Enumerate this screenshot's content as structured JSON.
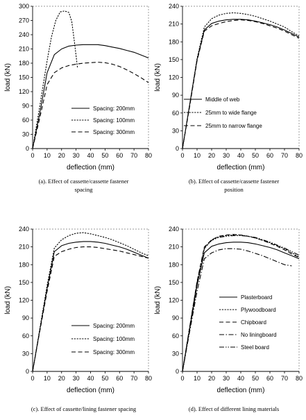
{
  "chart_data": [
    {
      "type": "line",
      "xlabel": "deflection (mm)",
      "ylabel": "load (kN)",
      "xlim": [
        0,
        80
      ],
      "ylim": [
        0,
        300
      ],
      "xticks": [
        0,
        10,
        20,
        30,
        40,
        50,
        60,
        70,
        80
      ],
      "yticks": [
        0,
        30,
        60,
        90,
        120,
        150,
        180,
        210,
        240,
        270,
        300
      ],
      "caption": [
        "(a). Effect of cassette/cassette fastener",
        "spacing"
      ],
      "legend_position": "bottom-right",
      "series": [
        {
          "name": "Spacing: 200mm",
          "style": "solid",
          "x": [
            0,
            5,
            10,
            15,
            20,
            25,
            30,
            35,
            40,
            45,
            50,
            55,
            60,
            65,
            70,
            75,
            80
          ],
          "y": [
            0,
            75,
            160,
            198,
            210,
            216,
            218,
            219,
            219,
            219,
            217,
            214,
            211,
            207,
            203,
            197,
            191
          ]
        },
        {
          "name": "Spacing: 100mm",
          "style": "dotted",
          "x": [
            0,
            5,
            10,
            13,
            16,
            19,
            22,
            25,
            27,
            29,
            31
          ],
          "y": [
            0,
            90,
            185,
            235,
            270,
            288,
            290,
            287,
            268,
            222,
            170
          ]
        },
        {
          "name": "Spacing: 300mm",
          "style": "dashed",
          "x": [
            0,
            5,
            10,
            15,
            20,
            25,
            30,
            35,
            40,
            45,
            50,
            55,
            60,
            65,
            70,
            75,
            80
          ],
          "y": [
            0,
            65,
            135,
            160,
            170,
            175,
            178,
            180,
            181,
            182,
            181,
            178,
            173,
            166,
            158,
            149,
            139
          ]
        }
      ]
    },
    {
      "type": "line",
      "xlabel": "deflection (mm)",
      "ylabel": "load (kN)",
      "xlim": [
        0,
        80
      ],
      "ylim": [
        0,
        240
      ],
      "xticks": [
        0,
        10,
        20,
        30,
        40,
        50,
        60,
        70,
        80
      ],
      "yticks": [
        0,
        30,
        60,
        90,
        120,
        150,
        180,
        210,
        240
      ],
      "caption": [
        "(b). Effect of cassette/cassette fastener",
        "position"
      ],
      "legend_position": "bottom-right",
      "series": [
        {
          "name": "Middle of web",
          "style": "solid",
          "x": [
            0,
            5,
            10,
            15,
            20,
            25,
            30,
            35,
            40,
            45,
            50,
            55,
            60,
            65,
            70,
            75,
            80
          ],
          "y": [
            0,
            75,
            150,
            200,
            211,
            215,
            217,
            218,
            218,
            217,
            215,
            212,
            209,
            205,
            200,
            194,
            188
          ]
        },
        {
          "name": "25mm to wide flange",
          "style": "dotted",
          "x": [
            0,
            5,
            10,
            15,
            20,
            25,
            30,
            35,
            40,
            45,
            50,
            55,
            60,
            65,
            70,
            75,
            80
          ],
          "y": [
            0,
            75,
            152,
            205,
            219,
            225,
            228,
            229,
            228,
            226,
            223,
            219,
            215,
            210,
            205,
            197,
            190
          ]
        },
        {
          "name": "25mm to narrow flange",
          "style": "dashed",
          "x": [
            0,
            5,
            10,
            15,
            20,
            25,
            30,
            35,
            40,
            45,
            50,
            55,
            60,
            65,
            70,
            75,
            80
          ],
          "y": [
            0,
            72,
            148,
            198,
            207,
            211,
            214,
            216,
            217,
            216,
            214,
            211,
            207,
            203,
            198,
            192,
            186
          ]
        }
      ]
    },
    {
      "type": "line",
      "xlabel": "deflection (mm)",
      "ylabel": "load (kN)",
      "xlim": [
        0,
        80
      ],
      "ylim": [
        0,
        240
      ],
      "xticks": [
        0,
        10,
        20,
        30,
        40,
        50,
        60,
        70,
        80
      ],
      "yticks": [
        0,
        30,
        60,
        90,
        120,
        150,
        180,
        210,
        240
      ],
      "caption": [
        "(c). Effect of cassette/lining fastener spacing"
      ],
      "legend_position": "bottom-right",
      "series": [
        {
          "name": "Spacing: 200mm",
          "style": "solid",
          "x": [
            0,
            5,
            10,
            15,
            20,
            25,
            30,
            35,
            40,
            45,
            50,
            55,
            60,
            65,
            70,
            75,
            80
          ],
          "y": [
            0,
            70,
            140,
            202,
            212,
            216,
            218,
            219,
            219,
            218,
            216,
            213,
            210,
            206,
            201,
            196,
            191
          ]
        },
        {
          "name": "Spacing: 100mm",
          "style": "dotted",
          "x": [
            0,
            5,
            10,
            15,
            20,
            25,
            30,
            35,
            40,
            45,
            50,
            55,
            60,
            65,
            70,
            75,
            80
          ],
          "y": [
            0,
            72,
            145,
            208,
            222,
            229,
            233,
            234,
            232,
            229,
            226,
            222,
            217,
            212,
            206,
            200,
            195
          ]
        },
        {
          "name": "Spacing: 300mm",
          "style": "dashed",
          "x": [
            0,
            5,
            10,
            15,
            20,
            25,
            30,
            35,
            40,
            45,
            50,
            55,
            60,
            65,
            70,
            75,
            80
          ],
          "y": [
            0,
            68,
            135,
            194,
            202,
            206,
            209,
            210,
            210,
            209,
            207,
            205,
            203,
            200,
            197,
            194,
            191
          ]
        }
      ]
    },
    {
      "type": "line",
      "xlabel": "deflection (mm)",
      "ylabel": "load (kN)",
      "xlim": [
        0,
        80
      ],
      "ylim": [
        0,
        240
      ],
      "xticks": [
        0,
        10,
        20,
        30,
        40,
        50,
        60,
        70,
        80
      ],
      "yticks": [
        0,
        30,
        60,
        90,
        120,
        150,
        180,
        210,
        240
      ],
      "caption": [
        "(d). Effect of different lining materials"
      ],
      "legend_position": "bottom-right",
      "series": [
        {
          "name": "Plasterboard",
          "style": "solid",
          "x": [
            0,
            5,
            10,
            15,
            20,
            25,
            30,
            35,
            40,
            45,
            50,
            55,
            60,
            65,
            70,
            75,
            80
          ],
          "y": [
            0,
            72,
            145,
            200,
            211,
            215,
            217,
            218,
            218,
            217,
            215,
            212,
            209,
            205,
            200,
            195,
            190
          ]
        },
        {
          "name": "Plywoodboard",
          "style": "dotted",
          "x": [
            0,
            5,
            10,
            15,
            20,
            25,
            30,
            35,
            40,
            45,
            50,
            55,
            60,
            65,
            70,
            75,
            80
          ],
          "y": [
            0,
            75,
            150,
            208,
            222,
            227,
            229,
            230,
            230,
            228,
            225,
            221,
            217,
            212,
            207,
            200,
            193
          ]
        },
        {
          "name": "Chipboard",
          "style": "dashed",
          "x": [
            0,
            5,
            10,
            15,
            20,
            25,
            30,
            35,
            40,
            45,
            50,
            55,
            60,
            65,
            70,
            75,
            80
          ],
          "y": [
            0,
            76,
            152,
            210,
            222,
            228,
            230,
            231,
            230,
            228,
            225,
            221,
            216,
            211,
            205,
            198,
            192
          ]
        },
        {
          "name": "No liningboard",
          "style": "dashdot",
          "x": [
            0,
            5,
            10,
            15,
            20,
            25,
            30,
            35,
            40,
            45,
            50,
            55,
            60,
            65,
            70,
            75
          ],
          "y": [
            0,
            68,
            135,
            190,
            200,
            205,
            207,
            207,
            206,
            203,
            199,
            195,
            190,
            185,
            180,
            178
          ]
        },
        {
          "name": "Steel board",
          "style": "dashdotdot",
          "x": [
            0,
            5,
            10,
            15,
            20,
            25,
            30,
            35,
            40,
            45,
            50,
            55,
            60,
            65,
            70,
            75,
            80
          ],
          "y": [
            0,
            75,
            150,
            207,
            221,
            226,
            228,
            229,
            229,
            228,
            226,
            222,
            218,
            213,
            208,
            202,
            196
          ]
        }
      ]
    }
  ]
}
